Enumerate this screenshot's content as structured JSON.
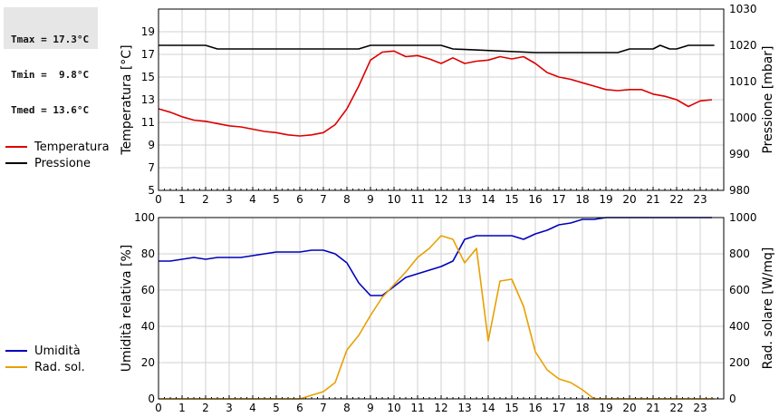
{
  "stats": {
    "tmax": "Tmax = 17.3°C",
    "tmin": "Tmin =  9.8°C",
    "tmed": "Tmed = 13.6°C"
  },
  "colors": {
    "temperatura": "#dd0000",
    "pressione": "#000000",
    "umidita": "#0000bb",
    "radsol": "#e8a000",
    "grid": "#d0d0d0"
  },
  "legend_top": [
    {
      "label": "Temperatura",
      "color": "#dd0000"
    },
    {
      "label": "Pressione",
      "color": "#000000"
    }
  ],
  "legend_bottom": [
    {
      "label": "Umidità",
      "color": "#0000bb"
    },
    {
      "label": "Rad. sol.",
      "color": "#e8a000"
    }
  ],
  "chart_data": [
    {
      "type": "line",
      "xlabel": "",
      "ylabel": "Temperatura [°C]",
      "y2label": "Pressione [mbar]",
      "xlim": [
        0,
        24
      ],
      "xticks": [
        "0",
        "1",
        "2",
        "3",
        "4",
        "5",
        "6",
        "7",
        "8",
        "9",
        "10",
        "11",
        "12",
        "13",
        "14",
        "15",
        "16",
        "17",
        "18",
        "19",
        "20",
        "21",
        "22",
        "23"
      ],
      "ylim": [
        5,
        21
      ],
      "yticks": [
        "5",
        "7",
        "9",
        "11",
        "13",
        "15",
        "17",
        "19"
      ],
      "y2lim": [
        980,
        1030
      ],
      "y2ticks": [
        "980",
        "990",
        "1000",
        "1010",
        "1020",
        "1030"
      ],
      "grid": true,
      "series": [
        {
          "name": "Temperatura",
          "axis": "left",
          "x": [
            0,
            0.5,
            1,
            1.5,
            2,
            2.5,
            3,
            3.5,
            4,
            4.5,
            5,
            5.5,
            6,
            6.5,
            7,
            7.5,
            8,
            8.5,
            9,
            9.5,
            10,
            10.5,
            11,
            11.5,
            12,
            12.5,
            13,
            13.5,
            14,
            14.5,
            15,
            15.5,
            16,
            16.5,
            17,
            17.5,
            18,
            18.5,
            19,
            19.5,
            20,
            20.5,
            21,
            21.5,
            22,
            22.5,
            23,
            23.5
          ],
          "values": [
            12.2,
            11.9,
            11.5,
            11.2,
            11.1,
            10.9,
            10.7,
            10.6,
            10.4,
            10.2,
            10.1,
            9.9,
            9.8,
            9.9,
            10.1,
            10.8,
            12.2,
            14.2,
            16.5,
            17.2,
            17.3,
            16.8,
            16.9,
            16.6,
            16.2,
            16.7,
            16.2,
            16.4,
            16.5,
            16.8,
            16.6,
            16.8,
            16.2,
            15.4,
            15.0,
            14.8,
            14.5,
            14.2,
            13.9,
            13.8,
            13.9,
            13.9,
            13.5,
            13.3,
            13.0,
            12.4,
            12.9,
            13.0
          ]
        },
        {
          "name": "Pressione",
          "axis": "right",
          "x": [
            0,
            2,
            2.5,
            8.5,
            9,
            12,
            12.5,
            16,
            19.5,
            20,
            21,
            21.3,
            21.7,
            22,
            22.5,
            23.6
          ],
          "values": [
            1020,
            1020,
            1019,
            1019,
            1020,
            1020,
            1019,
            1018,
            1018,
            1019,
            1019,
            1020,
            1019,
            1019,
            1020,
            1020
          ]
        }
      ]
    },
    {
      "type": "line",
      "xlabel": "",
      "ylabel": "Umidità relativa [%]",
      "y2label": "Rad. solare [W/mq]",
      "xlim": [
        0,
        24
      ],
      "xticks": [
        "0",
        "1",
        "2",
        "3",
        "4",
        "5",
        "6",
        "7",
        "8",
        "9",
        "10",
        "11",
        "12",
        "13",
        "14",
        "15",
        "16",
        "17",
        "18",
        "19",
        "20",
        "21",
        "22",
        "23"
      ],
      "ylim": [
        0,
        100
      ],
      "yticks": [
        "0",
        "20",
        "40",
        "60",
        "80",
        "100"
      ],
      "y2lim": [
        0,
        1000
      ],
      "y2ticks": [
        "0",
        "200",
        "400",
        "600",
        "800",
        "1000"
      ],
      "grid": true,
      "series": [
        {
          "name": "Umidità",
          "axis": "left",
          "x": [
            0,
            0.5,
            1,
            1.5,
            2,
            2.5,
            3,
            3.5,
            4,
            4.5,
            5,
            5.5,
            6,
            6.5,
            7,
            7.5,
            8,
            8.5,
            9,
            9.5,
            10,
            10.5,
            11,
            11.5,
            12,
            12.5,
            13,
            13.5,
            14,
            14.5,
            15,
            15.5,
            16,
            16.5,
            17,
            17.5,
            18,
            18.5,
            19,
            19.5,
            20,
            20.5,
            21,
            21.5,
            22,
            22.5,
            23,
            23.5
          ],
          "values": [
            76,
            76,
            77,
            78,
            77,
            78,
            78,
            78,
            79,
            80,
            81,
            81,
            81,
            82,
            82,
            80,
            75,
            64,
            57,
            57,
            62,
            67,
            69,
            71,
            73,
            76,
            88,
            90,
            90,
            90,
            90,
            88,
            91,
            93,
            96,
            97,
            99,
            99,
            100,
            100,
            100,
            100,
            100,
            100,
            100,
            100,
            100,
            100
          ]
        },
        {
          "name": "Rad. sol.",
          "axis": "right",
          "x": [
            0,
            1,
            2,
            3,
            4,
            5,
            6,
            6.5,
            7,
            7.5,
            8,
            8.5,
            9,
            9.5,
            10,
            10.5,
            11,
            11.5,
            12,
            12.5,
            13,
            13.5,
            14,
            14.5,
            15,
            15.5,
            16,
            16.5,
            17,
            17.5,
            18,
            18.5,
            19,
            20,
            21,
            22,
            23,
            23.6
          ],
          "values": [
            0,
            0,
            0,
            0,
            0,
            0,
            0,
            20,
            40,
            90,
            270,
            350,
            460,
            560,
            630,
            700,
            780,
            830,
            900,
            880,
            750,
            830,
            320,
            650,
            660,
            510,
            260,
            160,
            110,
            90,
            50,
            0,
            0,
            0,
            0,
            0,
            0,
            0
          ]
        }
      ]
    }
  ]
}
